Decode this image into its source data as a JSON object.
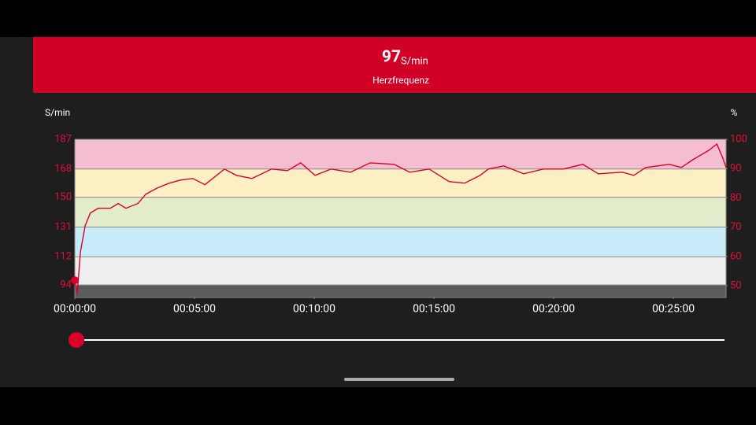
{
  "header": {
    "value": 97,
    "unit": "S/min",
    "label": "Herzfrequenz"
  },
  "chart_data": {
    "type": "line",
    "y_label": "S/min",
    "y2_label": "%",
    "x": [
      0,
      6,
      14,
      26,
      39,
      59,
      89,
      109,
      128,
      158,
      178,
      207,
      237,
      266,
      296,
      326,
      375,
      405,
      444,
      493,
      533,
      566,
      602,
      642,
      691,
      740,
      800,
      839,
      888,
      938,
      977,
      1016,
      1036,
      1075,
      1125,
      1174,
      1224,
      1273,
      1312,
      1372,
      1401,
      1431,
      1490,
      1520,
      1549,
      1589,
      1609,
      1624,
      1632
    ],
    "values": [
      97,
      88,
      115,
      132,
      140,
      143,
      143,
      146,
      143,
      146,
      152,
      156,
      159,
      161,
      162,
      158,
      168,
      164,
      162,
      168,
      167,
      172,
      164,
      168,
      166,
      172,
      171,
      166,
      168,
      160,
      159,
      164,
      168,
      170,
      165,
      168,
      168,
      171,
      165,
      166,
      164,
      169,
      171,
      169,
      174,
      180,
      184,
      175,
      169
    ],
    "color": "#d6002a",
    "xlim": [
      0,
      1632
    ],
    "xticks": [
      {
        "value": 0,
        "label": "00:00:00"
      },
      {
        "value": 300,
        "label": "00:05:00"
      },
      {
        "value": 600,
        "label": "00:10:00"
      },
      {
        "value": 900,
        "label": "00:15:00"
      },
      {
        "value": 1200,
        "label": "00:20:00"
      },
      {
        "value": 1500,
        "label": "00:25:00"
      }
    ],
    "ylim": [
      86,
      187
    ],
    "yticks": [
      94,
      112,
      131,
      150,
      168,
      187
    ],
    "y2lim": [
      46,
      100
    ],
    "y2ticks": [
      50,
      60,
      70,
      80,
      90,
      100
    ],
    "zone_colors": [
      "#5b5b5b",
      "#eeeeee",
      "#c8ebfa",
      "#e3ecca",
      "#fcefc4",
      "#f4bdd2"
    ],
    "grid": true
  }
}
